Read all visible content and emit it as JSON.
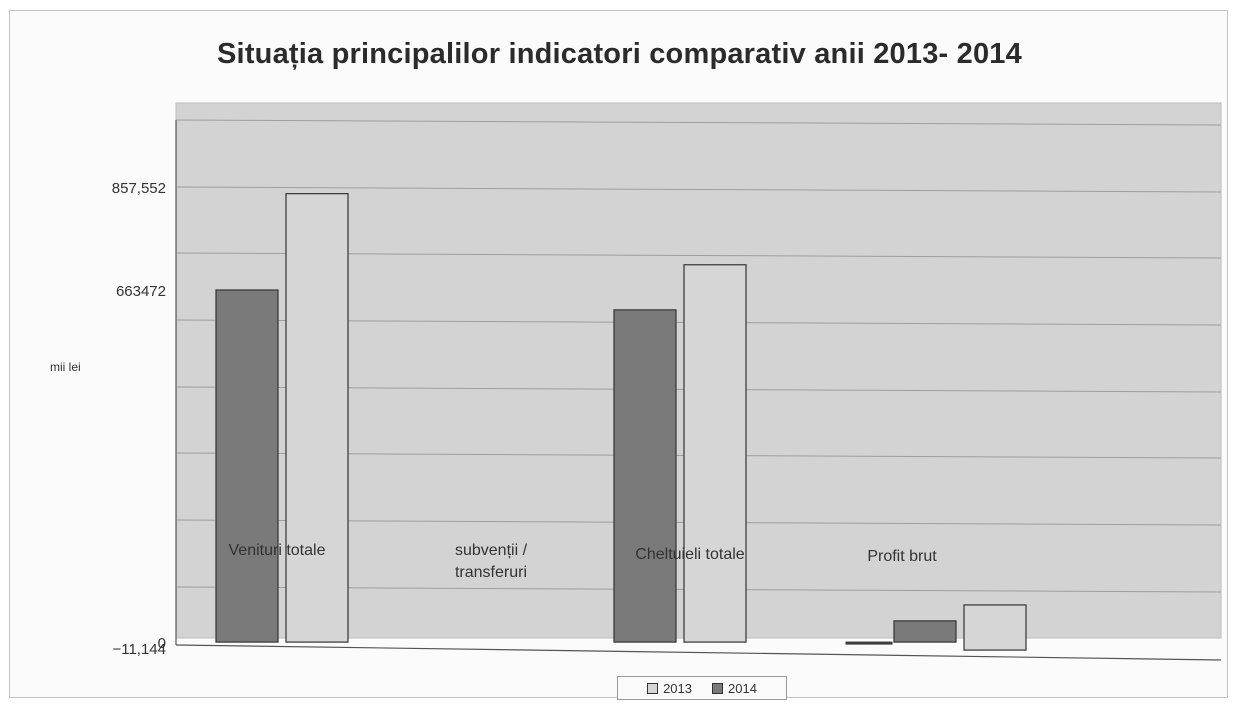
{
  "chart_data": {
    "type": "bar",
    "title": "Situația principalilor indicatori comparativ anii 2013- 2014",
    "ylabel": "mii lei",
    "categories": [
      "Venituri totale",
      "subvenții / transferuri",
      "Cheltuieli  totale",
      "Profit brut"
    ],
    "series": [
      {
        "name": "2014",
        "values": [
          663472,
          0,
          626000,
          40000
        ],
        "color": "#7a7a7a"
      },
      {
        "name": "2013",
        "values": [
          845000,
          0,
          711000,
          70000
        ],
        "color": "#d6d6d6"
      }
    ],
    "extra_bars": [
      {
        "category": "Profit brut",
        "value": -1500,
        "color": "#4a4a4a"
      }
    ],
    "yticks": [
      {
        "label": "857,552",
        "value": 857552
      },
      {
        "label": "663472",
        "value": 663472
      },
      {
        "label": "0",
        "value": 0
      },
      {
        "label": "−11,144",
        "value": -11144
      }
    ],
    "ylim": [
      -11144,
      857552
    ],
    "grid": true,
    "legend_position": "bottom",
    "plot_background": "#d3d3d3"
  }
}
